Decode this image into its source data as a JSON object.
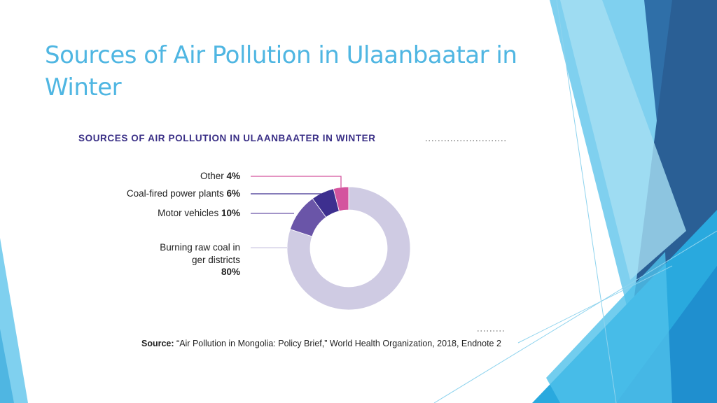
{
  "slide_title": "Sources of Air Pollution in Ulaanbaatar in Winter",
  "chart_data": {
    "type": "pie",
    "donut": true,
    "title": "SOURCES OF AIR POLLUTION IN ULAANBAATER IN WINTER",
    "categories": [
      "Other",
      "Coal-fired power plants",
      "Motor vehicles",
      "Burning raw coal in ger districts"
    ],
    "values": [
      4,
      6,
      10,
      80
    ],
    "value_labels": [
      "4%",
      "6%",
      "10%",
      "80%"
    ],
    "colors": [
      "#d4549e",
      "#3d2f8f",
      "#6a55a8",
      "#cfcbe3"
    ],
    "source": {
      "label": "Source:",
      "text": "“Air Pollution in Mongolia: Policy Brief,” World Health Organization, 2018, Endnote 2"
    }
  }
}
